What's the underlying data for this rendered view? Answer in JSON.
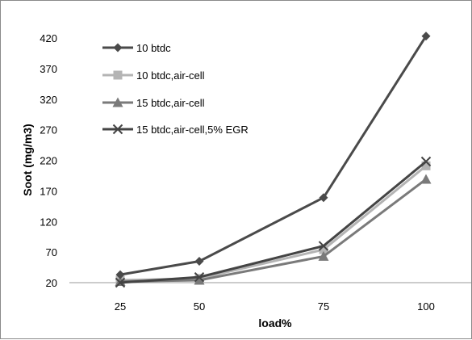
{
  "chart_data": {
    "type": "line",
    "xlabel": "load%",
    "ylabel": "Soot (mg/m3)",
    "categories": [
      "25",
      "50",
      "75",
      "100"
    ],
    "yticks": [
      "20",
      "70",
      "120",
      "170",
      "220",
      "270",
      "320",
      "370",
      "420"
    ],
    "ylim": [
      20,
      420
    ],
    "grid": "horizontal-baseline-only",
    "legend_position": "top-left",
    "series": [
      {
        "name": "10 btdc",
        "values": [
          33,
          55,
          159,
          423
        ],
        "color": "#4a4a4a",
        "marker": "diamond"
      },
      {
        "name": "10 btdc,air-cell",
        "values": [
          24,
          27,
          74,
          211
        ],
        "color": "#b4b4b4",
        "marker": "square"
      },
      {
        "name": "15 btdc,air-cell",
        "values": [
          22,
          24,
          63,
          189
        ],
        "color": "#7a7a7a",
        "marker": "triangle"
      },
      {
        "name": "15 btdc,air-cell,5% EGR",
        "values": [
          20,
          29,
          80,
          218
        ],
        "color": "#444444",
        "marker": "x"
      }
    ]
  }
}
